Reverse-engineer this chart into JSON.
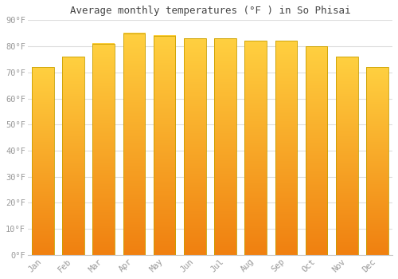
{
  "title": "Average monthly temperatures (°F ) in So Phisai",
  "months": [
    "Jan",
    "Feb",
    "Mar",
    "Apr",
    "May",
    "Jun",
    "Jul",
    "Aug",
    "Sep",
    "Oct",
    "Nov",
    "Dec"
  ],
  "values": [
    72,
    76,
    81,
    85,
    84,
    83,
    83,
    82,
    82,
    80,
    76,
    72
  ],
  "bar_color_top": "#FFD040",
  "bar_color_bottom": "#F08010",
  "bar_edge_color": "#C8A000",
  "background_color": "#FFFFFF",
  "grid_color": "#DDDDDD",
  "ytick_labels": [
    "0°F",
    "10°F",
    "20°F",
    "30°F",
    "40°F",
    "50°F",
    "60°F",
    "70°F",
    "80°F",
    "90°F"
  ],
  "ytick_values": [
    0,
    10,
    20,
    30,
    40,
    50,
    60,
    70,
    80,
    90
  ],
  "ylim": [
    0,
    90
  ],
  "title_fontsize": 9,
  "tick_fontsize": 7.5,
  "font_color": "#999999"
}
